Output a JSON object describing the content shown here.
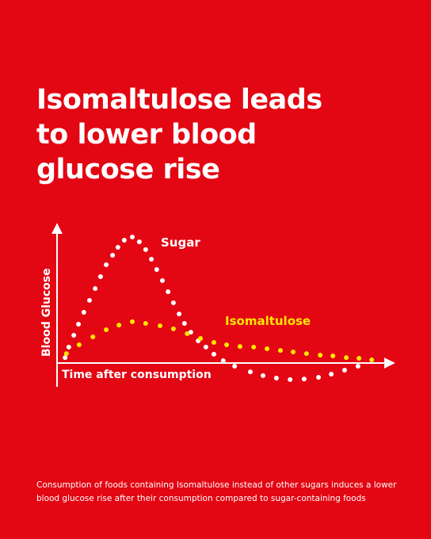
{
  "chart_data": {
    "type": "scatter",
    "title": "Isomaltulose leads to lower blood glucose rise",
    "x_label": "Time after consumption",
    "y_label": "Blood Glucose",
    "caption": "Consumption of foods containing Isomaltulose instead of other sugars induces a lower blood glucose rise after their consumption compared to sugar-containing foods",
    "xlim": [
      0,
      100
    ],
    "ylim": [
      -20,
      100
    ],
    "series": [
      {
        "name": "Sugar",
        "color": "#ffffff",
        "x": [
          1.7,
          2.8,
          4.3,
          5.7,
          7.3,
          9,
          10.7,
          12.3,
          14,
          15.9,
          17.5,
          19.4,
          21.8,
          23.9,
          25.8,
          27.5,
          29.1,
          30.8,
          32.5,
          34.1,
          35.8,
          37.4,
          39.3,
          41.5,
          43.8,
          46.2,
          49,
          52.4,
          57.1,
          60.9,
          64.9,
          69,
          73.2,
          77.5,
          81.3,
          85.3,
          89.3
        ],
        "values": [
          4,
          11.6,
          20.2,
          28.3,
          37,
          45.7,
          54.3,
          63,
          71.7,
          78.6,
          84.4,
          89.6,
          91.9,
          88.4,
          82.7,
          75.7,
          68.2,
          60.1,
          52,
          43.9,
          35.8,
          28.9,
          22.5,
          16.2,
          11.6,
          6.4,
          1.7,
          -2.3,
          -6.4,
          -9.2,
          -11,
          -12.1,
          -11.6,
          -10.4,
          -8.1,
          -5.2,
          -2.3
        ]
      },
      {
        "name": "Isomaltulose",
        "color": "#ffe600",
        "x": [
          2.1,
          5.9,
          10,
          14,
          17.8,
          21.8,
          25.8,
          30.1,
          34.1,
          38.2,
          42.2,
          46.2,
          50,
          54,
          58.1,
          62.1,
          66.1,
          69.9,
          73.9,
          78,
          81.8,
          85.8,
          89.6,
          93.4
        ],
        "values": [
          6.9,
          13.3,
          19.1,
          24.3,
          27.7,
          30.1,
          28.9,
          27.2,
          24.9,
          21.4,
          17.9,
          15,
          13.3,
          12.1,
          11.6,
          10.4,
          9.2,
          8.1,
          6.9,
          5.8,
          5.2,
          4,
          3.5,
          2.3
        ]
      }
    ]
  }
}
